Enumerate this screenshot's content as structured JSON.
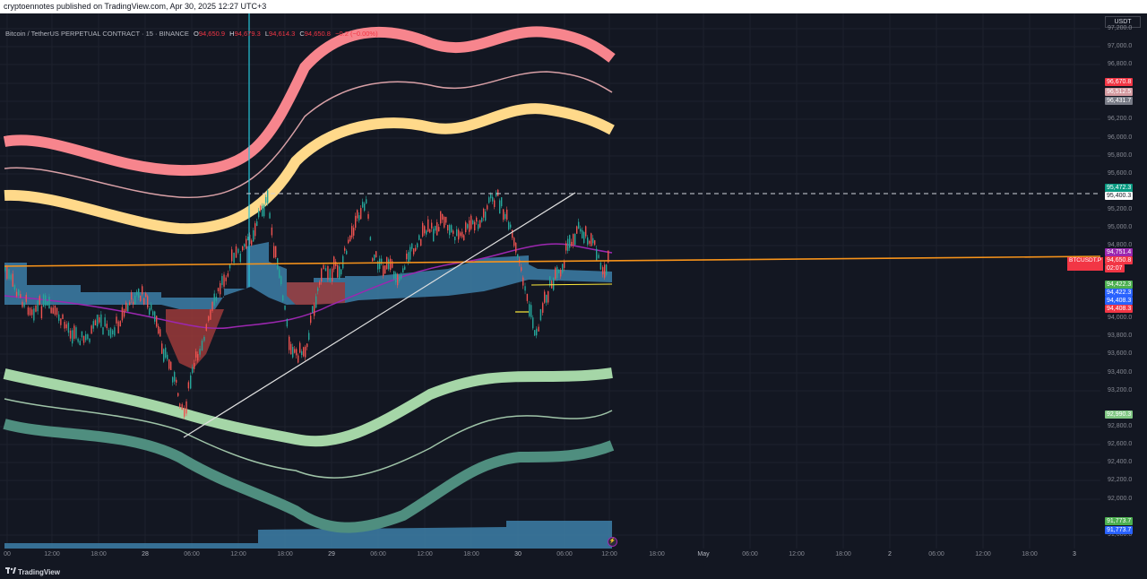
{
  "header": {
    "published_text": "cryptoennotes published on TradingView.com, Apr 30, 2025 12:27 UTC+3"
  },
  "symbol": {
    "name": "Bitcoin / TetherUS PERPETUAL CONTRACT · 15 · BINANCE",
    "open_label": "O",
    "open": "94,650.9",
    "high_label": "H",
    "high": "94,679.3",
    "low_label": "L",
    "low": "94,614.3",
    "close_label": "C",
    "close": "94,650.8",
    "change": "−0.2 (−0.00%)"
  },
  "currency_button": "USDT",
  "price_scale": {
    "ticks": [
      "97,200.0",
      "97,000.0",
      "96,800.0",
      "96,600.0",
      "96,400.0",
      "96,200.0",
      "96,000.0",
      "95,800.0",
      "95,600.0",
      "95,200.0",
      "95,000.0",
      "94,800.0",
      "94,000.0",
      "93,800.0",
      "93,600.0",
      "93,400.0",
      "93,200.0",
      "92,800.0",
      "92,600.0",
      "92,400.0",
      "92,200.0",
      "92,000.0",
      "91,600.0"
    ]
  },
  "badges": [
    {
      "text": "96,670.8",
      "color": "#f23645"
    },
    {
      "text": "96,512.5",
      "color": "#d49aa0"
    },
    {
      "text": "96,431.7",
      "color": "#787b86"
    },
    {
      "text": "95,472.3",
      "color": "#089981"
    },
    {
      "text": "95,400.3",
      "color": "#ffffff"
    },
    {
      "text": "94,751.4",
      "color": "#9c27b0"
    },
    {
      "text": "94,650.8",
      "color": "#f23645"
    },
    {
      "text": "02:07",
      "color": "#f23645"
    },
    {
      "text": "94,422.3",
      "color": "#4caf50"
    },
    {
      "text": "94,422.3",
      "color": "#2962ff"
    },
    {
      "text": "94,408.3",
      "color": "#2962ff"
    },
    {
      "text": "94,408.3",
      "color": "#f23645"
    },
    {
      "text": "92,990.3",
      "color": "#81c784"
    },
    {
      "text": "91,773.7",
      "color": "#4caf50"
    },
    {
      "text": "91,773.7",
      "color": "#2962ff"
    }
  ],
  "symbol_badge": "BTCUSDT.P",
  "time_axis": {
    "labels": [
      "00",
      "12:00",
      "18:00",
      "28",
      "06:00",
      "12:00",
      "18:00",
      "29",
      "06:00",
      "12:00",
      "18:00",
      "30",
      "06:00",
      "12:00",
      "18:00",
      "May",
      "06:00",
      "12:00",
      "18:00",
      "2",
      "06:00",
      "12:00",
      "18:00",
      "3"
    ]
  },
  "footer": {
    "brand": "TradingView"
  },
  "colors": {
    "background": "#131722",
    "upper_band": "#f7858d",
    "upper_mid": "#ffd98a",
    "lower_band": "#a5d6a7",
    "lower_dark": "#4f8e7f",
    "cloud": "#3d7fa8",
    "trend": "#f7931a",
    "ma": "#9c27b0"
  }
}
